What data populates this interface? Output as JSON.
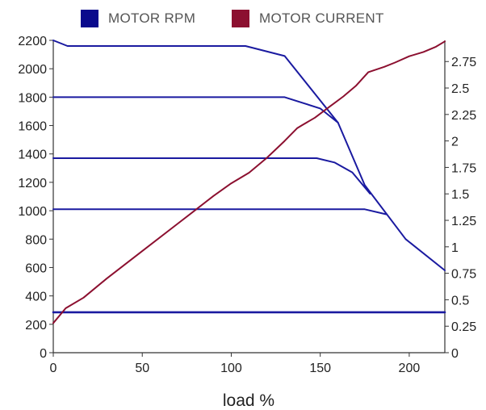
{
  "chart_data": {
    "type": "line",
    "xlabel": "load %",
    "xlim": [
      0,
      220
    ],
    "x_ticks": [
      0,
      50,
      100,
      150,
      200
    ],
    "y_left": {
      "lim": [
        0,
        2200
      ],
      "ticks": [
        0,
        200,
        400,
        600,
        800,
        1000,
        1200,
        1400,
        1600,
        1800,
        2000,
        2200
      ]
    },
    "y_right": {
      "lim": [
        0,
        2.95
      ],
      "ticks": [
        0,
        0.25,
        0.5,
        0.75,
        1,
        1.25,
        1.5,
        1.75,
        2,
        2.25,
        2.5,
        2.75
      ]
    },
    "grid": false,
    "legend_position": "top",
    "legend": [
      {
        "label": "MOTOR RPM",
        "color": "#0a0a8c"
      },
      {
        "label": "MOTOR CURRENT",
        "color": "#8c1030"
      }
    ],
    "series": [
      {
        "axis": "left",
        "color": "#1a1aa0",
        "x": [
          0,
          8,
          108,
          130,
          160,
          175,
          198,
          220
        ],
        "y": [
          2200,
          2160,
          2160,
          2090,
          1620,
          1180,
          800,
          580
        ]
      },
      {
        "axis": "left",
        "color": "#1a1aa0",
        "x": [
          0,
          130,
          150,
          160
        ],
        "y": [
          1800,
          1800,
          1720,
          1620
        ]
      },
      {
        "axis": "left",
        "color": "#1a1aa0",
        "x": [
          0,
          148,
          158,
          168,
          178
        ],
        "y": [
          1370,
          1370,
          1340,
          1270,
          1120
        ]
      },
      {
        "axis": "left",
        "color": "#1a1aa0",
        "x": [
          0,
          175,
          187
        ],
        "y": [
          1010,
          1010,
          975
        ]
      },
      {
        "axis": "left",
        "color": "#1a1aa0",
        "x": [
          0,
          220
        ],
        "y": [
          285,
          285
        ]
      },
      {
        "axis": "right",
        "color": "#8c1030",
        "x": [
          0,
          7,
          17,
          30,
          50,
          70,
          80,
          90,
          100,
          110,
          120,
          130,
          137,
          140,
          147,
          155,
          163,
          170,
          177,
          186,
          192,
          200,
          208,
          215,
          220
        ],
        "y": [
          0.28,
          0.42,
          0.52,
          0.7,
          0.96,
          1.22,
          1.35,
          1.48,
          1.6,
          1.7,
          1.84,
          2.0,
          2.12,
          2.15,
          2.22,
          2.32,
          2.42,
          2.52,
          2.65,
          2.7,
          2.74,
          2.8,
          2.84,
          2.89,
          2.94
        ]
      }
    ]
  }
}
